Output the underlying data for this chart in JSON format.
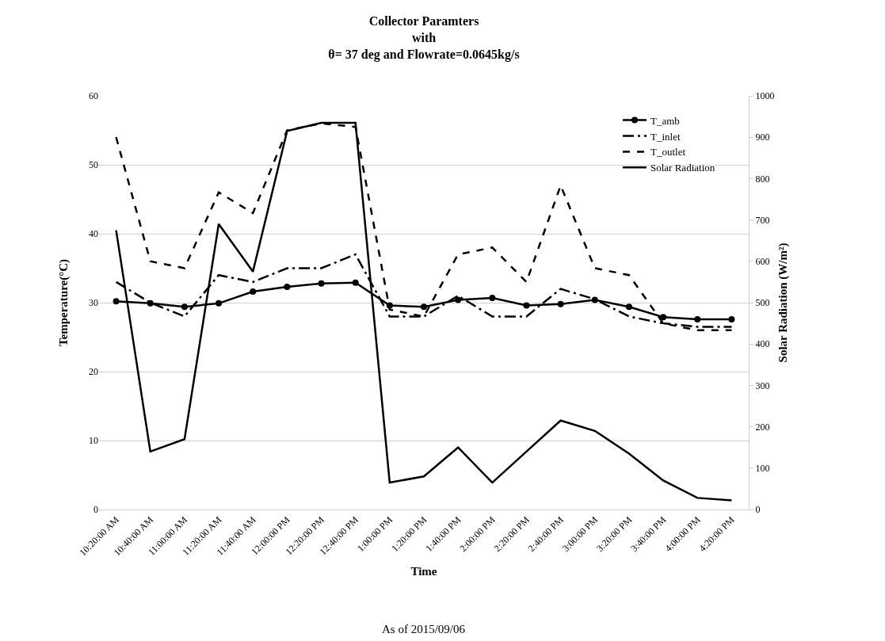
{
  "chart_data": {
    "type": "line",
    "title": "Collector Paramters\nwith\nθ= 37 deg and Flowrate=0.0645kg/s",
    "xlabel": "Time",
    "ylabel": "Temperature(°C)",
    "y2label": "Solar Radiation (W/m²)",
    "annotations": [
      "As of 2015/09/06"
    ],
    "categories": [
      "10:20:00 AM",
      "10:40:00 AM",
      "11:00:00 AM",
      "11:20:00 AM",
      "11:40:00 AM",
      "12:00:00 PM",
      "12:20:00 PM",
      "12:40:00 PM",
      "1:00:00 PM",
      "1:20:00 PM",
      "1:40:00 PM",
      "2:00:00 PM",
      "2:20:00 PM",
      "2:40:00 PM",
      "3:00:00 PM",
      "3:20:00 PM",
      "3:40:00 PM",
      "4:00:00 PM",
      "4:20:00 PM"
    ],
    "series": [
      {
        "name": "T_amb",
        "color": "#000000",
        "marker": "circle",
        "line_style": "solid",
        "values": [
          30.2,
          29.9,
          29.4,
          29.9,
          31.6,
          32.3,
          32.8,
          32.9,
          29.6,
          29.4,
          30.4,
          30.7,
          29.6,
          29.8,
          30.4,
          29.4,
          27.9,
          27.6,
          27.6
        ]
      },
      {
        "name": "T_inlet",
        "color": "#000000",
        "marker": "none",
        "line_style": "dashdot",
        "values": [
          33,
          30,
          28,
          34,
          33,
          35,
          35,
          37,
          28,
          28,
          31,
          28,
          28,
          32,
          30.5,
          28,
          27,
          26.5,
          26.5
        ]
      },
      {
        "name": "T_outlet",
        "color": "#000000",
        "marker": "none",
        "line_style": "dashed",
        "values": [
          54,
          36,
          35,
          46,
          43,
          55,
          56,
          55.5,
          29,
          28,
          37,
          38,
          33,
          47,
          35,
          34,
          27,
          26,
          26
        ]
      },
      {
        "name": "Solar Radiation",
        "color": "#000000",
        "marker": "none",
        "line_style": "solid",
        "axis": "y2",
        "values": [
          675,
          140,
          170,
          690,
          575,
          915,
          935,
          935,
          65,
          80,
          150,
          65,
          140,
          215,
          190,
          135,
          70,
          28,
          22
        ]
      }
    ],
    "ylim": [
      0,
      60
    ],
    "yticks": [
      0,
      10,
      20,
      30,
      40,
      50,
      60
    ],
    "y2lim": [
      0,
      1000
    ],
    "y2ticks": [
      0,
      100,
      200,
      300,
      400,
      500,
      600,
      700,
      800,
      900,
      1000
    ],
    "grid": "y",
    "legend": "top right"
  }
}
